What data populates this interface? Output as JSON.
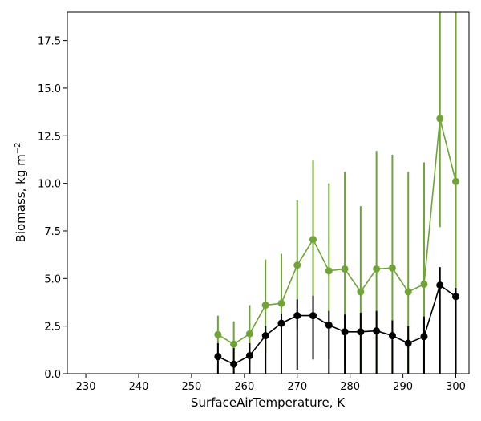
{
  "chart_data": {
    "type": "line",
    "xlabel": "SurfaceAirTemperature,  K",
    "ylabel_main": "Biomass,  kg m",
    "ylabel_sup": "−2",
    "xlim": [
      226.5,
      302.5
    ],
    "ylim": [
      0,
      19.0
    ],
    "xticks": [
      230,
      240,
      250,
      260,
      270,
      280,
      290,
      300
    ],
    "yticks": [
      0.0,
      2.5,
      5.0,
      7.5,
      10.0,
      12.5,
      15.0,
      17.5
    ],
    "ytick_labels": [
      "0.0",
      "2.5",
      "5.0",
      "7.5",
      "10.0",
      "12.5",
      "15.0",
      "17.5"
    ],
    "grid": false,
    "x": [
      255,
      258,
      261,
      264,
      267,
      270,
      273,
      276,
      279,
      282,
      285,
      288,
      291,
      294,
      297,
      300
    ],
    "series": [
      {
        "color": "#6ea535",
        "values": [
          2.05,
          1.55,
          2.1,
          3.6,
          3.7,
          5.7,
          7.05,
          5.4,
          5.5,
          4.3,
          5.5,
          5.55,
          4.3,
          4.7,
          13.4,
          10.1
        ],
        "err_low": [
          1.05,
          0.0,
          0.55,
          1.1,
          1.2,
          2.3,
          2.95,
          0.75,
          0.4,
          0.0,
          0.0,
          0.0,
          0.0,
          0.0,
          7.7,
          1.3
        ],
        "err_high": [
          3.05,
          2.75,
          3.6,
          6.0,
          6.3,
          9.1,
          11.2,
          10.0,
          10.6,
          8.8,
          11.7,
          11.5,
          10.6,
          11.1,
          19.0,
          19.0
        ]
      },
      {
        "color": "#000000",
        "values": [
          0.9,
          0.5,
          0.95,
          2.0,
          2.65,
          3.05,
          3.05,
          2.55,
          2.2,
          2.2,
          2.25,
          2.0,
          1.6,
          1.95,
          4.65,
          4.05
        ],
        "err_low": [
          0.0,
          0.0,
          0.0,
          0.0,
          0.0,
          0.2,
          0.75,
          0.0,
          0.0,
          0.0,
          0.0,
          0.0,
          0.0,
          0.0,
          0.0,
          0.0
        ],
        "err_high": [
          1.6,
          1.35,
          1.6,
          2.5,
          3.15,
          3.9,
          4.1,
          3.3,
          3.1,
          3.2,
          3.3,
          2.8,
          2.5,
          3.0,
          5.6,
          4.5
        ]
      }
    ]
  }
}
